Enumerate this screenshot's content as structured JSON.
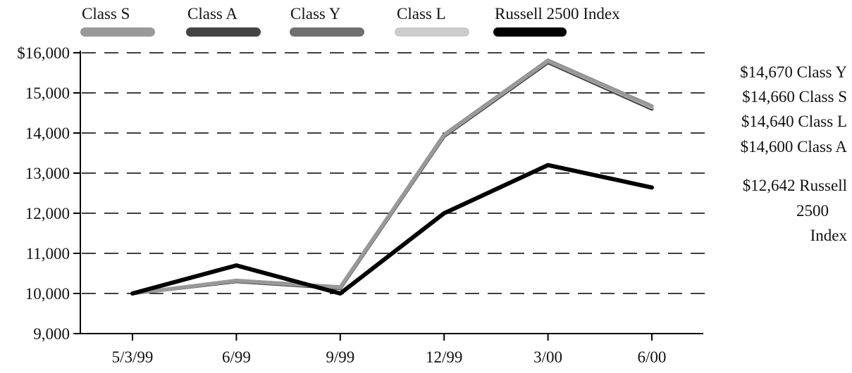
{
  "chart_data": {
    "type": "line",
    "categories": [
      "5/3/99",
      "6/99",
      "9/99",
      "12/99",
      "3/00",
      "6/00"
    ],
    "series": [
      {
        "name": "Class S",
        "values": [
          10000,
          10320,
          10150,
          13950,
          15800,
          14660
        ],
        "color": "#999999"
      },
      {
        "name": "Class A",
        "values": [
          10000,
          10300,
          10130,
          13920,
          15760,
          14600
        ],
        "color": "#444444"
      },
      {
        "name": "Class Y",
        "values": [
          10000,
          10325,
          10160,
          13960,
          15810,
          14670
        ],
        "color": "#707070"
      },
      {
        "name": "Class L",
        "values": [
          10000,
          10318,
          10150,
          13945,
          15795,
          14640
        ],
        "color": "#cccccc"
      },
      {
        "name": "Russell 2500 Index",
        "values": [
          10000,
          10700,
          10000,
          12000,
          13200,
          12642
        ],
        "color": "#000000"
      }
    ],
    "draw_order": [
      "Class A",
      "Class Y",
      "Class L",
      "Class S",
      "Russell 2500 Index"
    ],
    "y_ticks": [
      "$16,000",
      "15,000",
      "14,000",
      "13,000",
      "12,000",
      "11,000",
      "10,000",
      "9,000"
    ],
    "ylim": [
      9000,
      16000
    ],
    "grid": "dashed horizontal",
    "legend_position": "top",
    "end_labels": [
      "$14,670 Class Y",
      "$14,660 Class S",
      "$14,640 Class L",
      "$14,600 Class A",
      "$12,642 Russell",
      "2500",
      "Index"
    ]
  }
}
